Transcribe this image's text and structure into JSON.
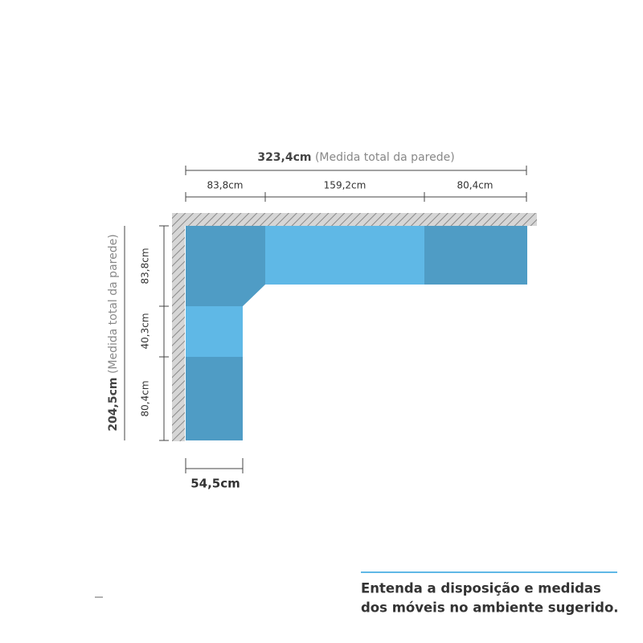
{
  "top": {
    "total": "323,4cm",
    "note": "(Medida total da parede)",
    "parts": [
      "83,8cm",
      "159,2cm",
      "80,4cm"
    ]
  },
  "left": {
    "total": "204,5cm",
    "note": "(Medida total da parede)",
    "parts": [
      "83,8cm",
      "40,3cm",
      "80,4cm"
    ]
  },
  "depth": "54,5cm",
  "caption": [
    "Entenda a disposição e medidas",
    "dos móveis no ambiente sugerido."
  ]
}
